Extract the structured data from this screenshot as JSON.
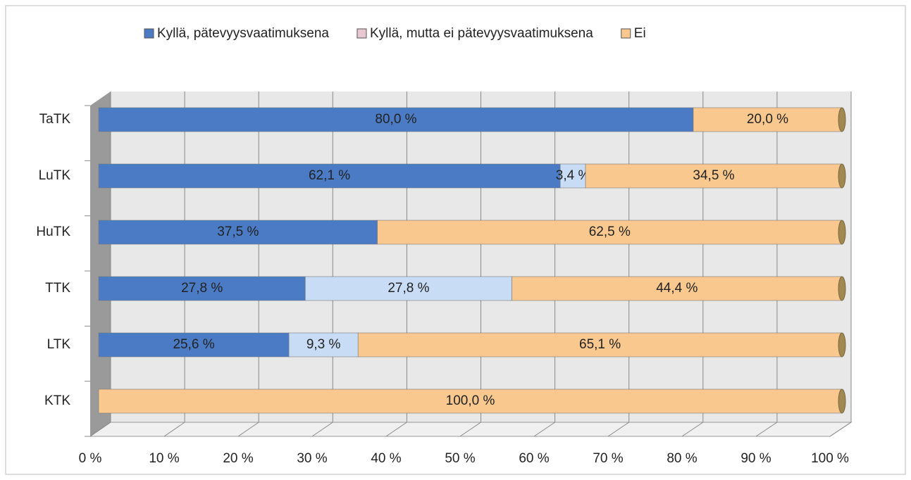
{
  "chart_data": {
    "type": "stacked_barh",
    "categories": [
      "TaTK",
      "LuTK",
      "HuTK",
      "TTK",
      "LTK",
      "KTK"
    ],
    "series": [
      {
        "name": "Kyllä, pätevyysvaatimuksena",
        "color": "#4a7bc4",
        "values": [
          80.0,
          62.1,
          37.5,
          27.8,
          25.6,
          0
        ],
        "value_labels": [
          "80,0 %",
          "62,1 %",
          "37,5 %",
          "27,8 %",
          "25,6 %",
          null
        ]
      },
      {
        "name": "Kyllä, mutta ei pätevyysvaatimuksena",
        "color": "#c9dcf5",
        "values": [
          0,
          3.4,
          0,
          27.8,
          9.3,
          0
        ],
        "value_labels": [
          null,
          "3,4 %",
          null,
          "27,8 %",
          "9,3 %",
          null
        ]
      },
      {
        "name": "Ei",
        "color": "#f9c88e",
        "values": [
          20.0,
          34.5,
          62.5,
          44.4,
          65.1,
          100.0
        ],
        "value_labels": [
          "20,0 %",
          "34,5 %",
          "62,5 %",
          "44,4 %",
          "65,1 %",
          "100,0 %"
        ]
      }
    ],
    "xlim": [
      0,
      100
    ],
    "xticks": [
      {
        "value": 0,
        "label": "0 %"
      },
      {
        "value": 10,
        "label": "10 %"
      },
      {
        "value": 20,
        "label": "20 %"
      },
      {
        "value": 30,
        "label": "30 %"
      },
      {
        "value": 40,
        "label": "40 %"
      },
      {
        "value": 50,
        "label": "50 %"
      },
      {
        "value": 60,
        "label": "60 %"
      },
      {
        "value": 70,
        "label": "70 %"
      },
      {
        "value": 80,
        "label": "80 %"
      },
      {
        "value": 90,
        "label": "90 %"
      },
      {
        "value": 100,
        "label": "100 %"
      }
    ],
    "grid": true,
    "legend": "top"
  }
}
